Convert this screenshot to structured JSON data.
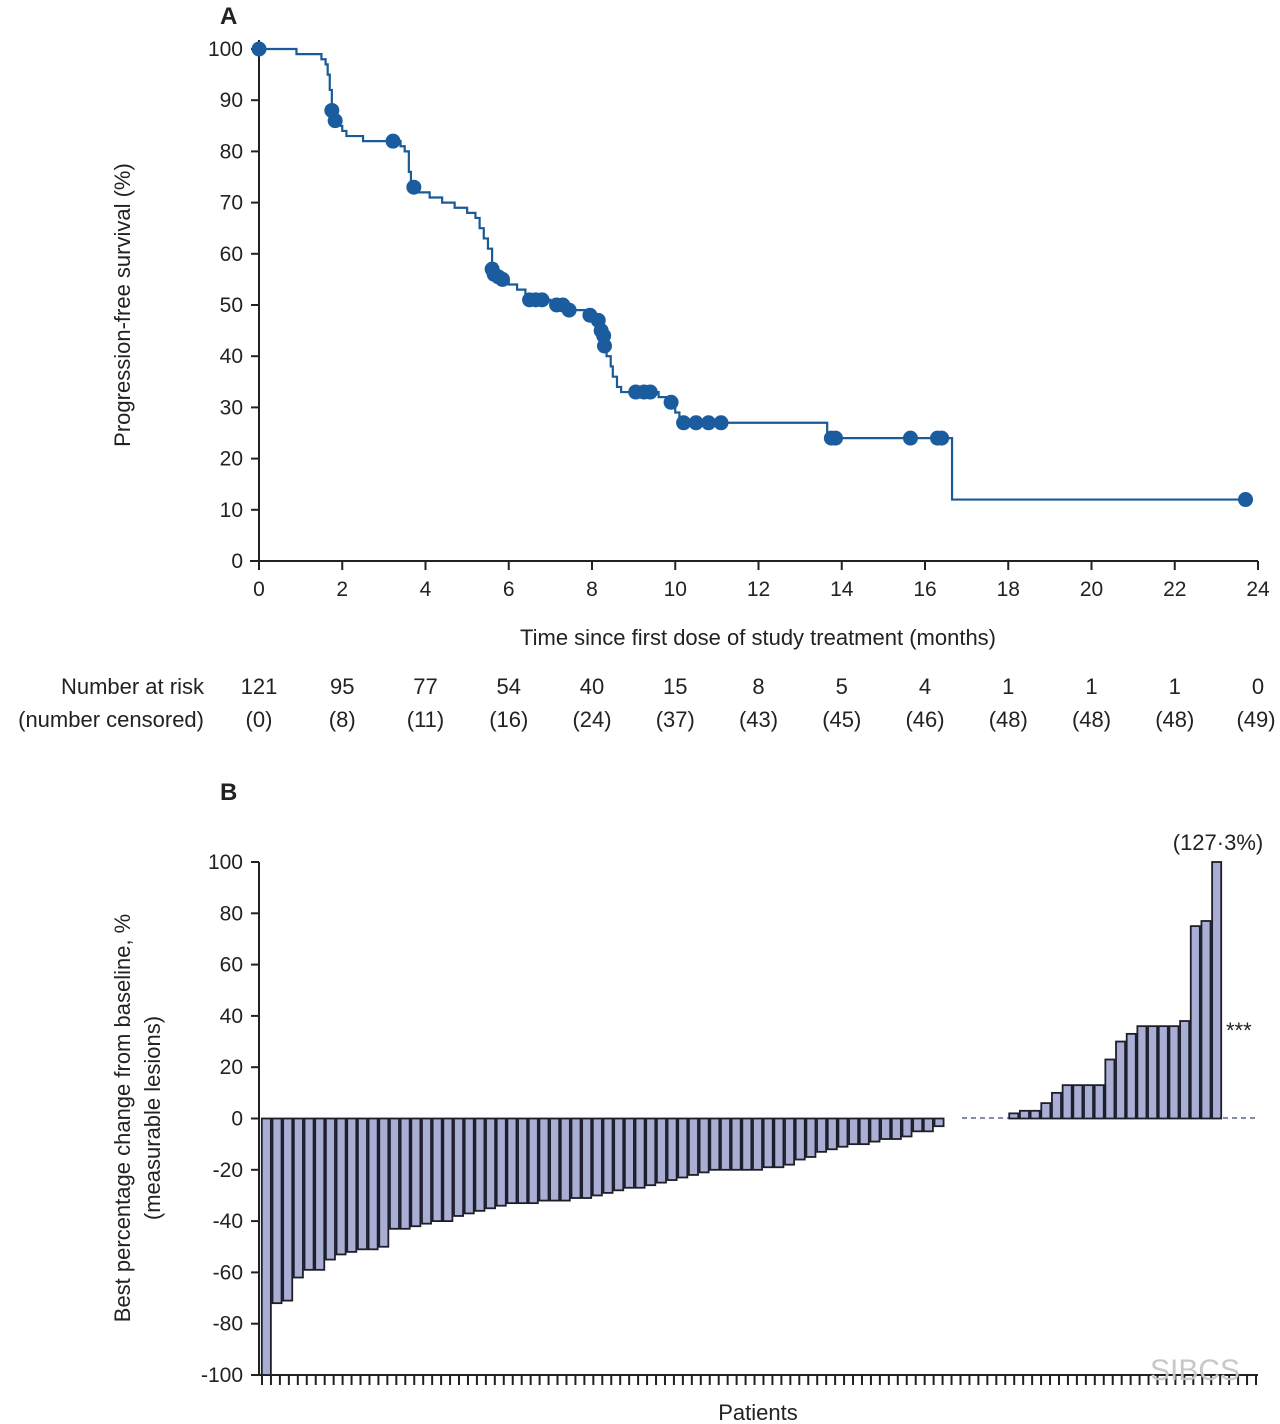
{
  "chart_data": [
    {
      "panel": "A",
      "type": "line",
      "subtype": "kaplan-meier",
      "title": "",
      "xlabel": "Time since first dose of study treatment (months)",
      "ylabel": "Progression-free survival (%)",
      "xlim": [
        0,
        24
      ],
      "ylim": [
        0,
        100
      ],
      "xticks": [
        "0",
        "2",
        "4",
        "6",
        "8",
        "10",
        "12",
        "14",
        "16",
        "18",
        "20",
        "22",
        "24"
      ],
      "yticks": [
        "0",
        "10",
        "20",
        "30",
        "40",
        "50",
        "60",
        "70",
        "80",
        "90",
        "100"
      ],
      "line_color": "#1a5a96",
      "curve": [
        [
          0,
          100
        ],
        [
          0.9,
          99
        ],
        [
          1.5,
          98
        ],
        [
          1.6,
          97
        ],
        [
          1.65,
          95
        ],
        [
          1.7,
          92
        ],
        [
          1.75,
          89
        ],
        [
          1.8,
          87
        ],
        [
          1.85,
          85
        ],
        [
          2.0,
          84
        ],
        [
          2.1,
          83
        ],
        [
          2.5,
          82
        ],
        [
          3.3,
          82
        ],
        [
          3.4,
          81
        ],
        [
          3.5,
          80
        ],
        [
          3.6,
          76
        ],
        [
          3.65,
          73
        ],
        [
          3.8,
          72
        ],
        [
          4.1,
          71
        ],
        [
          4.4,
          70
        ],
        [
          4.7,
          69
        ],
        [
          5.0,
          68
        ],
        [
          5.2,
          67
        ],
        [
          5.3,
          65
        ],
        [
          5.4,
          63
        ],
        [
          5.5,
          61
        ],
        [
          5.6,
          58
        ],
        [
          5.7,
          56
        ],
        [
          5.85,
          55
        ],
        [
          6.0,
          54
        ],
        [
          6.2,
          53
        ],
        [
          6.4,
          52
        ],
        [
          6.5,
          51
        ],
        [
          7.0,
          50
        ],
        [
          7.5,
          49
        ],
        [
          7.9,
          48
        ],
        [
          8.1,
          47
        ],
        [
          8.2,
          46
        ],
        [
          8.3,
          44
        ],
        [
          8.35,
          40
        ],
        [
          8.45,
          38
        ],
        [
          8.5,
          36
        ],
        [
          8.6,
          34
        ],
        [
          8.7,
          33
        ],
        [
          9.6,
          32
        ],
        [
          9.9,
          31
        ],
        [
          10.0,
          29
        ],
        [
          10.1,
          28
        ],
        [
          10.2,
          27
        ],
        [
          13.6,
          27
        ],
        [
          13.65,
          24
        ],
        [
          16.6,
          24
        ],
        [
          16.65,
          12
        ],
        [
          23.7,
          12
        ]
      ],
      "censored": [
        [
          0,
          100
        ],
        [
          1.75,
          88
        ],
        [
          1.83,
          86
        ],
        [
          3.22,
          82
        ],
        [
          3.72,
          73
        ],
        [
          5.6,
          57
        ],
        [
          5.65,
          56
        ],
        [
          5.75,
          55.5
        ],
        [
          5.85,
          55
        ],
        [
          6.5,
          51
        ],
        [
          6.65,
          51
        ],
        [
          6.8,
          51
        ],
        [
          7.15,
          50
        ],
        [
          7.3,
          50
        ],
        [
          7.45,
          49
        ],
        [
          7.95,
          48
        ],
        [
          8.15,
          47
        ],
        [
          8.22,
          45
        ],
        [
          8.28,
          44
        ],
        [
          8.3,
          42
        ],
        [
          9.05,
          33
        ],
        [
          9.25,
          33
        ],
        [
          9.4,
          33
        ],
        [
          9.9,
          31
        ],
        [
          10.2,
          27
        ],
        [
          10.5,
          27
        ],
        [
          10.8,
          27
        ],
        [
          11.1,
          27
        ],
        [
          13.75,
          24
        ],
        [
          13.85,
          24
        ],
        [
          15.65,
          24
        ],
        [
          16.3,
          24
        ],
        [
          16.4,
          24
        ],
        [
          23.7,
          12
        ]
      ],
      "risk_table": {
        "label_line1": "Number at risk",
        "label_line2": "(number censored)",
        "time": [
          0,
          2,
          4,
          6,
          8,
          10,
          12,
          14,
          16,
          18,
          20,
          22,
          24
        ],
        "at_risk": [
          "121",
          "95",
          "77",
          "54",
          "40",
          "15",
          "8",
          "5",
          "4",
          "1",
          "1",
          "1",
          "0"
        ],
        "censored": [
          "(0)",
          "(8)",
          "(11)",
          "(16)",
          "(24)",
          "(37)",
          "(43)",
          "(45)",
          "(46)",
          "(48)",
          "(48)",
          "(48)",
          "(49)"
        ]
      }
    },
    {
      "panel": "B",
      "type": "bar",
      "subtype": "waterfall",
      "title": "",
      "xlabel": "Patients",
      "ylabel_line1": "Best percentage change from baseline, %",
      "ylabel_line2": "(measurable lesions)",
      "ylim": [
        -100,
        100
      ],
      "yticks": [
        "100",
        "80",
        "60",
        "40",
        "20",
        "0",
        "-20",
        "-40",
        "-60",
        "-80",
        "-100"
      ],
      "bar_color": "#a8aed4",
      "values": [
        -100,
        -72,
        -71,
        -62,
        -59,
        -59,
        -55,
        -53,
        -52,
        -51,
        -51,
        -50,
        -43,
        -43,
        -42,
        -41,
        -40,
        -40,
        -38,
        -37,
        -36,
        -35,
        -34,
        -33,
        -33,
        -33,
        -32,
        -32,
        -32,
        -31,
        -31,
        -30,
        -29,
        -28,
        -27,
        -27,
        -26,
        -25,
        -24,
        -23,
        -22,
        -21,
        -20,
        -20,
        -20,
        -20,
        -20,
        -19,
        -19,
        -18,
        -16,
        -15,
        -13,
        -12,
        -11,
        -10,
        -10,
        -9,
        -8,
        -8,
        -7,
        -5,
        -5,
        -3,
        0,
        0,
        0,
        0,
        0,
        0,
        2,
        3,
        3,
        6,
        10,
        13,
        13,
        13,
        13,
        23,
        30,
        33,
        36,
        36,
        36,
        36,
        38,
        75,
        77,
        100
      ],
      "annotation_top": "(127·3%)",
      "annotation_marker": "***"
    }
  ],
  "panel_labels": {
    "a": "A",
    "b": "B"
  },
  "watermark": "SIBCS"
}
